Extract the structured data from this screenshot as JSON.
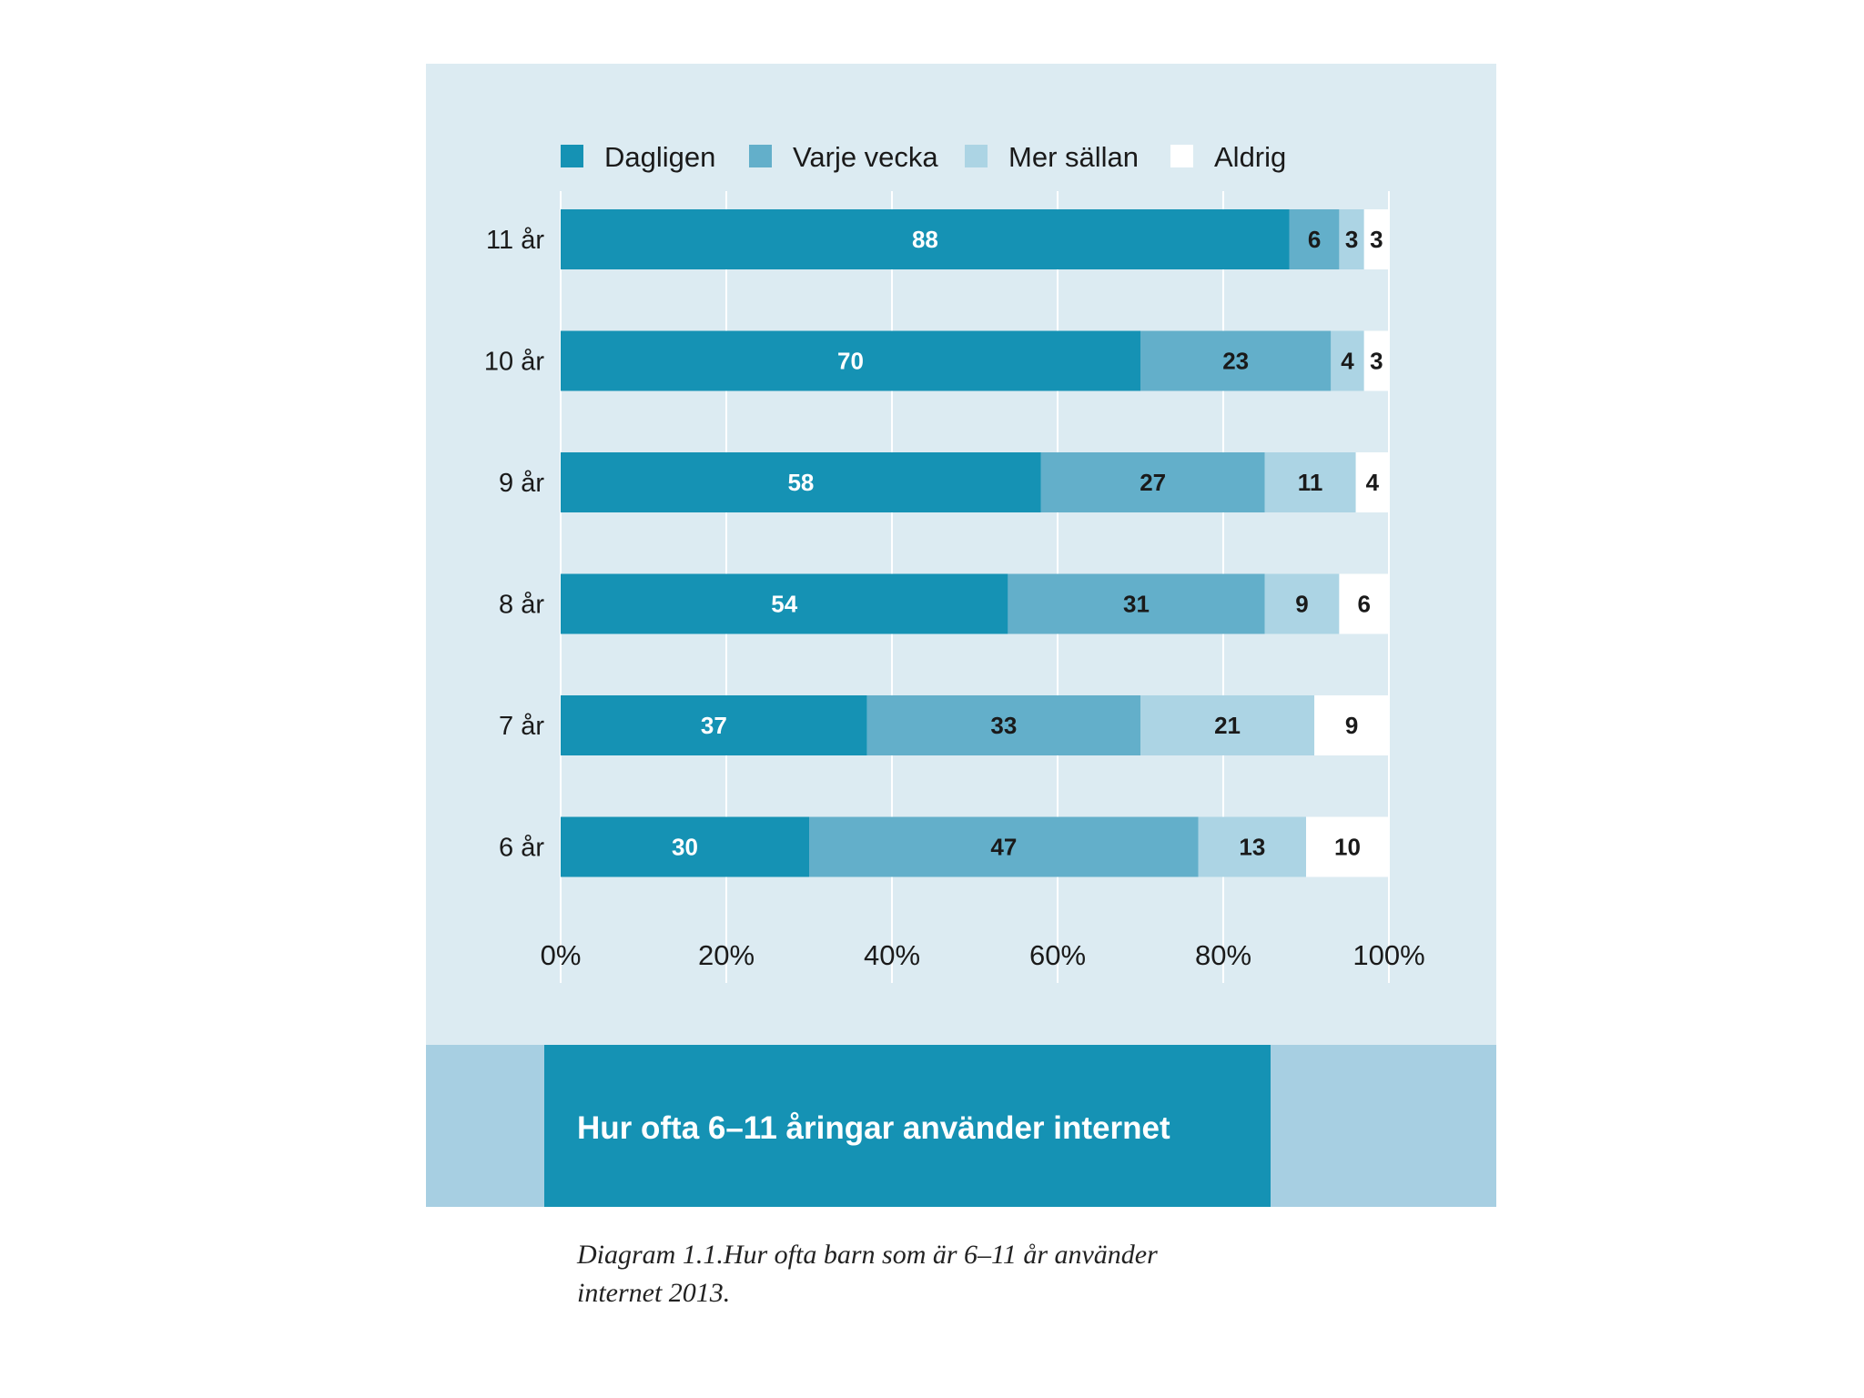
{
  "chart_data": {
    "type": "bar",
    "orientation": "horizontal",
    "stacked": true,
    "title": "Hur ofta 6–11 åringar använder internet",
    "caption": "Diagram 1.1.Hur ofta barn som är 6–11 år använder internet 2013.",
    "categories": [
      "11 år",
      "10 år",
      "9 år",
      "8 år",
      "7 år",
      "6 år"
    ],
    "series": [
      {
        "name": "Dagligen",
        "color": "#1592b4",
        "label_color": "#ffffff",
        "values": [
          88,
          70,
          58,
          54,
          37,
          30
        ]
      },
      {
        "name": "Varje vecka",
        "color": "#63afca",
        "label_color": "#1a1a1a",
        "values": [
          6,
          23,
          27,
          31,
          33,
          47
        ]
      },
      {
        "name": "Mer sällan",
        "color": "#acd4e4",
        "label_color": "#1a1a1a",
        "values": [
          3,
          4,
          11,
          9,
          21,
          13
        ]
      },
      {
        "name": "Aldrig",
        "color": "#ffffff",
        "label_color": "#1a1a1a",
        "values": [
          3,
          3,
          4,
          6,
          9,
          10
        ]
      }
    ],
    "xlim": [
      0,
      100
    ],
    "xticks": [
      "0%",
      "20%",
      "40%",
      "60%",
      "80%",
      "100%"
    ],
    "xlabel": "",
    "ylabel": "",
    "legend_position": "top",
    "grid": true
  }
}
